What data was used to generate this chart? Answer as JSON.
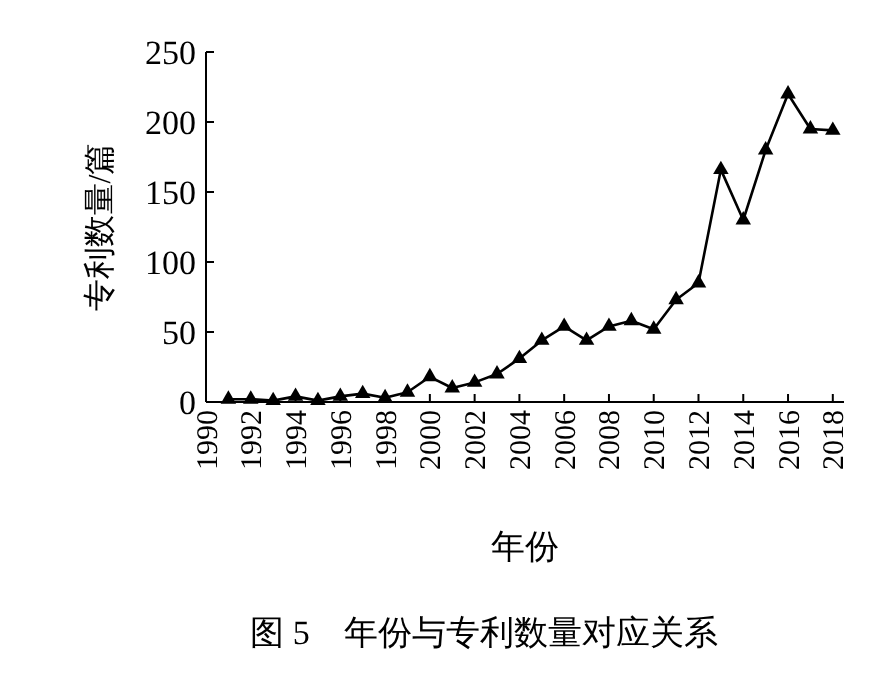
{
  "chart_data": {
    "type": "line",
    "xlabel": "年份",
    "ylabel": "专利数量/篇",
    "annotations": [
      "图 5　年份与专利数量对应关系"
    ],
    "x": [
      1991,
      1992,
      1993,
      1994,
      1995,
      1996,
      1997,
      1998,
      1999,
      2000,
      2001,
      2002,
      2003,
      2004,
      2005,
      2006,
      2007,
      2008,
      2009,
      2010,
      2011,
      2012,
      2013,
      2014,
      2015,
      2016,
      2017,
      2018
    ],
    "series": [
      {
        "color": "#000000",
        "values": [
          2,
          2,
          1,
          4,
          1,
          4,
          6,
          3,
          7,
          18,
          10,
          14,
          20,
          31,
          44,
          54,
          44,
          54,
          58,
          52,
          73,
          85,
          166,
          130,
          180,
          220,
          195,
          194
        ]
      }
    ],
    "xlim": [
      1990,
      2018.5
    ],
    "xticks": [
      1990,
      1992,
      1994,
      1996,
      1998,
      2000,
      2002,
      2004,
      2006,
      2008,
      2010,
      2012,
      2014,
      2016,
      2018
    ],
    "ylim": [
      0,
      250
    ],
    "yticks": [
      0,
      50,
      100,
      150,
      200,
      250
    ],
    "marker": "triangle",
    "line_style": "solid"
  }
}
